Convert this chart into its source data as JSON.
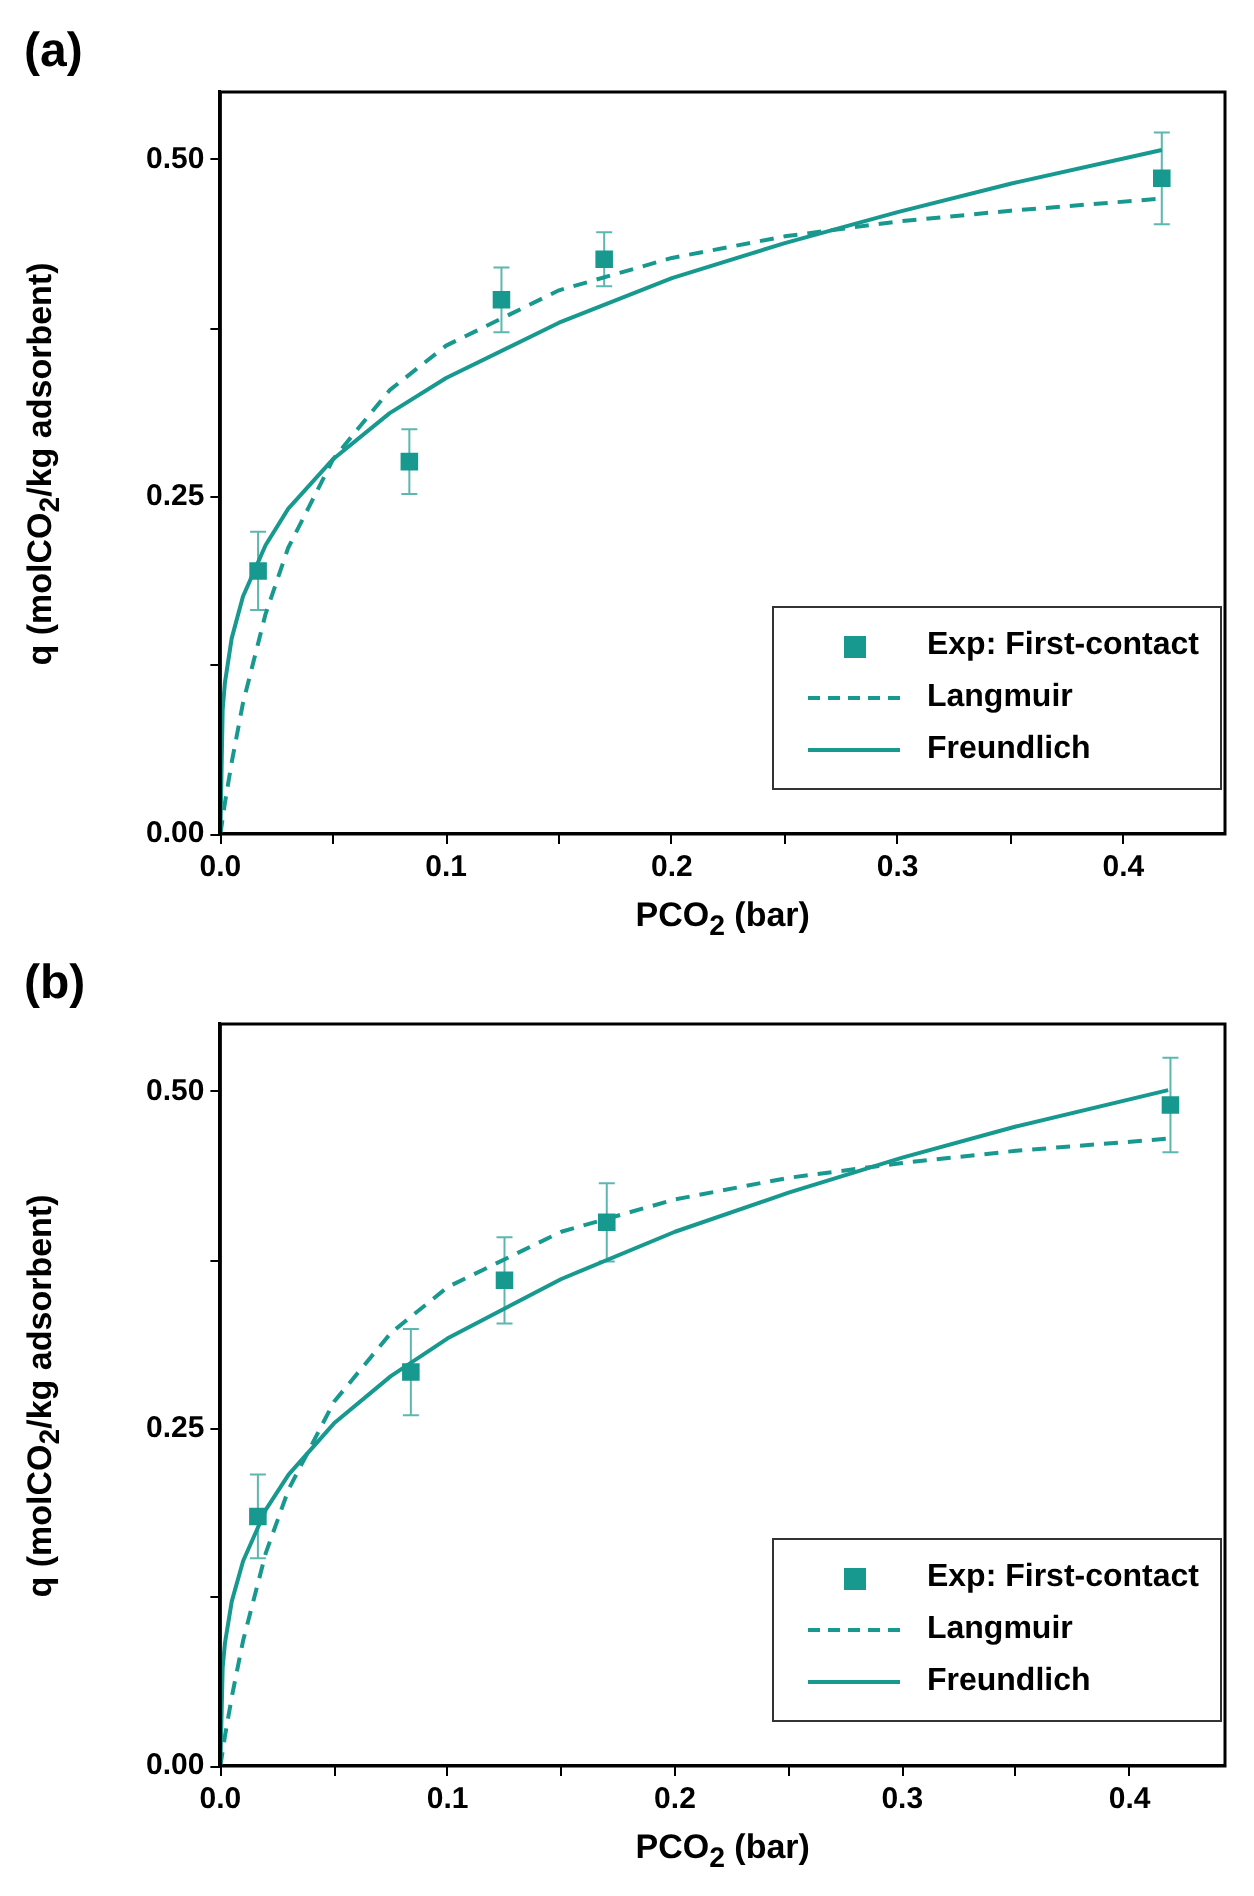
{
  "chart_data": [
    {
      "type": "scatter",
      "title": "(a)",
      "xlabel": "PCO$_{2}$ (bar)",
      "ylabel": "q (molCO$_{2}$/kg adsorbent)",
      "xlim": [
        0,
        0.445
      ],
      "ylim": [
        0,
        0.55
      ],
      "xticks": [
        {
          "value": 0,
          "label": "0.0"
        },
        {
          "value": 0.05,
          "label": null
        },
        0.1,
        {
          "value": 0.15,
          "label": null
        },
        0.2,
        {
          "value": 0.25,
          "label": null
        },
        0.3,
        {
          "value": 0.35,
          "label": null
        },
        0.4
      ],
      "yticks": [
        {
          "value": 0,
          "label": "0.00"
        },
        {
          "value": 0.125,
          "label": null
        },
        0.25,
        {
          "value": 0.375,
          "label": null
        },
        {
          "value": 0.5,
          "label": "0.50"
        }
      ],
      "grid": false,
      "legend": "bottom right",
      "series": [
        {
          "name": "Exp: First-contact",
          "type": "scatter",
          "marker": "square",
          "color": "#17998f",
          "x": [
            0.0167,
            0.0837,
            0.1245,
            0.17,
            0.417
          ],
          "values": [
            0.195,
            0.276,
            0.396,
            0.426,
            0.486
          ],
          "errors": [
            0.029,
            0.024,
            0.024,
            0.02,
            0.034
          ]
        },
        {
          "name": "Langmuir",
          "type": "line",
          "line_style": "dashed",
          "color": "#17998f",
          "x": [
            0,
            0.002,
            0.005,
            0.01,
            0.02,
            0.03,
            0.05,
            0.075,
            0.1,
            0.15,
            0.2,
            0.25,
            0.3,
            0.35,
            0.417
          ],
          "values": [
            0,
            0.023,
            0.053,
            0.097,
            0.163,
            0.212,
            0.278,
            0.329,
            0.362,
            0.403,
            0.427,
            0.443,
            0.454,
            0.462,
            0.471
          ]
        },
        {
          "name": "Freundlich",
          "type": "line",
          "line_style": "solid",
          "color": "#17998f",
          "x": [
            0,
            0.001,
            0.002,
            0.005,
            0.01,
            0.02,
            0.03,
            0.05,
            0.075,
            0.1,
            0.15,
            0.2,
            0.25,
            0.3,
            0.35,
            0.417
          ],
          "values": [
            0,
            0.092,
            0.112,
            0.145,
            0.176,
            0.214,
            0.241,
            0.278,
            0.312,
            0.338,
            0.379,
            0.412,
            0.438,
            0.461,
            0.482,
            0.507
          ]
        }
      ]
    },
    {
      "type": "scatter",
      "title": "(b)",
      "xlabel": "PCO$_{2}$ (bar)",
      "ylabel": "q (molCO$_{2}$/kg adsorbent)",
      "xlim": [
        0,
        0.442
      ],
      "ylim": [
        0,
        0.55
      ],
      "xticks": [
        {
          "value": 0,
          "label": "0.0"
        },
        {
          "value": 0.05,
          "label": null
        },
        0.1,
        {
          "value": 0.15,
          "label": null
        },
        0.2,
        {
          "value": 0.25,
          "label": null
        },
        0.3,
        {
          "value": 0.35,
          "label": null
        },
        0.4
      ],
      "yticks": [
        {
          "value": 0,
          "label": "0.00"
        },
        {
          "value": 0.125,
          "label": null
        },
        0.25,
        {
          "value": 0.375,
          "label": null
        },
        {
          "value": 0.5,
          "label": "0.50"
        }
      ],
      "grid": false,
      "legend": "bottom right",
      "series": [
        {
          "name": "Exp: First-contact",
          "type": "scatter",
          "marker": "square",
          "color": "#17998f",
          "x": [
            0.0165,
            0.0838,
            0.125,
            0.17,
            0.418
          ],
          "values": [
            0.185,
            0.292,
            0.36,
            0.403,
            0.49
          ],
          "errors": [
            0.031,
            0.032,
            0.032,
            0.029,
            0.035
          ]
        },
        {
          "name": "Langmuir",
          "type": "line",
          "line_style": "dashed",
          "color": "#17998f",
          "x": [
            0,
            0.002,
            0.005,
            0.01,
            0.02,
            0.03,
            0.05,
            0.075,
            0.1,
            0.15,
            0.2,
            0.25,
            0.3,
            0.35,
            0.417
          ],
          "values": [
            0,
            0.022,
            0.051,
            0.093,
            0.158,
            0.205,
            0.27,
            0.321,
            0.355,
            0.396,
            0.42,
            0.436,
            0.447,
            0.456,
            0.465
          ]
        },
        {
          "name": "Freundlich",
          "type": "line",
          "line_style": "solid",
          "color": "#17998f",
          "x": [
            0,
            0.001,
            0.002,
            0.005,
            0.01,
            0.02,
            0.03,
            0.05,
            0.075,
            0.1,
            0.15,
            0.2,
            0.25,
            0.3,
            0.35,
            0.417
          ],
          "values": [
            0,
            0.073,
            0.091,
            0.122,
            0.152,
            0.19,
            0.216,
            0.254,
            0.289,
            0.317,
            0.361,
            0.396,
            0.425,
            0.451,
            0.474,
            0.501
          ]
        }
      ]
    }
  ]
}
